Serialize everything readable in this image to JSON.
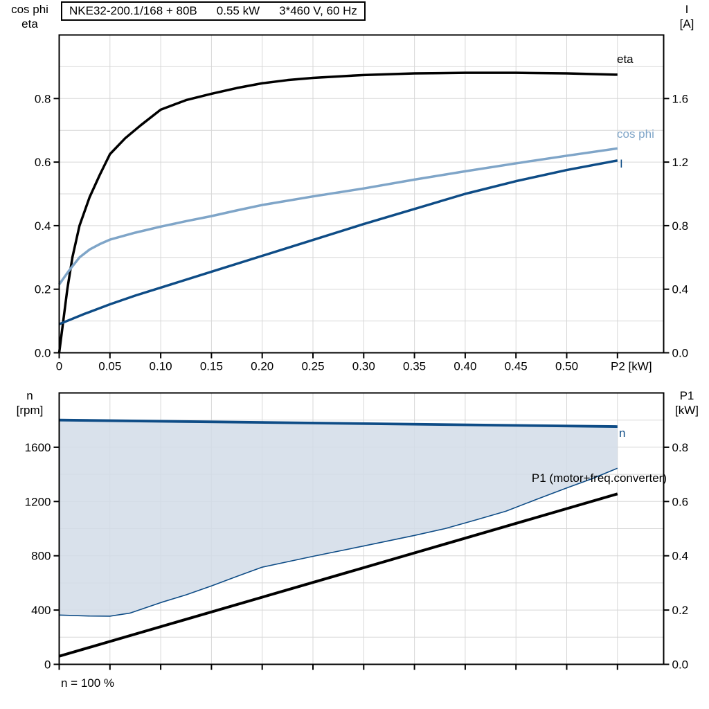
{
  "colors": {
    "black": "#000000",
    "light_blue": "#7FA5C8",
    "dark_blue": "#0E4C86",
    "fill": "#D2DCE8",
    "grid": "#D7D7D7"
  },
  "labels": {
    "title_model": "NKE32-200.1/168 + 80B",
    "title_power": "0.55 kW",
    "title_voltage": "3*460 V, 60 Hz",
    "axis_topleft_1": "cos phi",
    "axis_topleft_2": "eta",
    "axis_topright_1": "I",
    "axis_topright_2": "[A]",
    "axis_botleft_1": "n",
    "axis_botleft_2": "[rpm]",
    "axis_botright_1": "P1",
    "axis_botright_2": "[kW]",
    "curve_eta": "eta",
    "curve_cosphi": "cos phi",
    "curve_current": "I",
    "curve_n": "n",
    "curve_p1": "P1 (motor+freq.converter)",
    "footnote": "n = 100 %"
  },
  "chart_data": [
    {
      "type": "line",
      "title": "Motor curves: eta, cos phi, I vs shaft power P2",
      "x_axis": {
        "label": "P2 [kW]",
        "unit_label": "P2 [kW]",
        "unit_x": 0.55,
        "max": 0.5955,
        "grid_step": 0.05,
        "ticks": [
          0,
          0.05,
          0.1,
          0.15,
          0.2,
          0.25,
          0.3,
          0.35,
          0.4,
          0.45,
          0.5,
          0.55
        ],
        "tick_labels": [
          "0",
          "0.05",
          "0.10",
          "0.15",
          "0.20",
          "0.25",
          "0.30",
          "0.35",
          "0.40",
          "0.45",
          "0.50"
        ]
      },
      "y_left": {
        "label": "cos phi / eta",
        "range": [
          0,
          1.0
        ],
        "grid_step": 0.1,
        "ticks": [
          0,
          0.2,
          0.4,
          0.6,
          0.8
        ],
        "tick_labels": [
          "0.0",
          "0.2",
          "0.4",
          "0.6",
          "0.8"
        ]
      },
      "y_right": {
        "label": "I [A]",
        "range": [
          0,
          2.0
        ],
        "ticks": [
          0,
          0.4,
          0.8,
          1.2,
          1.6
        ],
        "tick_labels": [
          "0.0",
          "0.4",
          "0.8",
          "1.2",
          "1.6"
        ]
      },
      "series": [
        {
          "name": "eta",
          "axis": "left",
          "color": "black",
          "width": 3.5,
          "points": [
            [
              0,
              0
            ],
            [
              0.004,
              0.1
            ],
            [
              0.008,
              0.2
            ],
            [
              0.013,
              0.3
            ],
            [
              0.02,
              0.4
            ],
            [
              0.03,
              0.49
            ],
            [
              0.04,
              0.56
            ],
            [
              0.05,
              0.625
            ],
            [
              0.065,
              0.675
            ],
            [
              0.08,
              0.715
            ],
            [
              0.1,
              0.765
            ],
            [
              0.125,
              0.795
            ],
            [
              0.15,
              0.815
            ],
            [
              0.175,
              0.833
            ],
            [
              0.2,
              0.848
            ],
            [
              0.225,
              0.858
            ],
            [
              0.25,
              0.865
            ],
            [
              0.3,
              0.874
            ],
            [
              0.35,
              0.879
            ],
            [
              0.4,
              0.881
            ],
            [
              0.45,
              0.881
            ],
            [
              0.5,
              0.879
            ],
            [
              0.55,
              0.875
            ]
          ]
        },
        {
          "name": "cos_phi",
          "axis": "left",
          "color": "light_blue",
          "width": 3.5,
          "points": [
            [
              0,
              0.215
            ],
            [
              0.01,
              0.26
            ],
            [
              0.02,
              0.3
            ],
            [
              0.03,
              0.325
            ],
            [
              0.04,
              0.342
            ],
            [
              0.05,
              0.356
            ],
            [
              0.075,
              0.378
            ],
            [
              0.1,
              0.397
            ],
            [
              0.125,
              0.414
            ],
            [
              0.15,
              0.43
            ],
            [
              0.175,
              0.448
            ],
            [
              0.2,
              0.465
            ],
            [
              0.25,
              0.492
            ],
            [
              0.3,
              0.517
            ],
            [
              0.35,
              0.545
            ],
            [
              0.4,
              0.571
            ],
            [
              0.45,
              0.596
            ],
            [
              0.5,
              0.62
            ],
            [
              0.55,
              0.643
            ]
          ]
        },
        {
          "name": "I",
          "axis": "right",
          "color": "dark_blue",
          "width": 3.5,
          "points": [
            [
              0,
              0.18
            ],
            [
              0.025,
              0.245
            ],
            [
              0.05,
              0.305
            ],
            [
              0.075,
              0.36
            ],
            [
              0.1,
              0.41
            ],
            [
              0.15,
              0.51
            ],
            [
              0.2,
              0.61
            ],
            [
              0.25,
              0.71
            ],
            [
              0.3,
              0.81
            ],
            [
              0.35,
              0.905
            ],
            [
              0.4,
              1.0
            ],
            [
              0.45,
              1.08
            ],
            [
              0.5,
              1.15
            ],
            [
              0.55,
              1.21
            ]
          ]
        }
      ]
    },
    {
      "type": "line",
      "title": "Speed range n and input power P1 vs shaft power P2",
      "x_axis": {
        "label": "",
        "max": 0.5955,
        "grid_step": 0.05,
        "ticks": [
          0,
          0.05,
          0.1,
          0.15,
          0.2,
          0.25,
          0.3,
          0.35,
          0.4,
          0.45,
          0.5,
          0.55
        ],
        "tick_labels": null
      },
      "y_left": {
        "label": "n [rpm]",
        "range": [
          0,
          2000
        ],
        "grid_step": 200,
        "ticks": [
          0,
          400,
          800,
          1200,
          1600
        ],
        "tick_labels": [
          "0",
          "400",
          "800",
          "1200",
          "1600"
        ]
      },
      "y_right": {
        "label": "P1 [kW]",
        "range": [
          0,
          1.0
        ],
        "ticks": [
          0,
          0.2,
          0.4,
          0.6,
          0.8
        ],
        "tick_labels": [
          "0.0",
          "0.2",
          "0.4",
          "0.6",
          "0.8"
        ]
      },
      "fill_between": [
        "n_upper",
        "n_lower"
      ],
      "series": [
        {
          "name": "n_upper",
          "axis": "left",
          "color": "dark_blue",
          "width": 3.8,
          "points": [
            [
              0,
              1800
            ],
            [
              0.55,
              1752
            ]
          ]
        },
        {
          "name": "n_lower",
          "axis": "left",
          "color": "dark_blue",
          "width": 1.6,
          "points": [
            [
              0,
              363
            ],
            [
              0.03,
              356
            ],
            [
              0.05,
              355
            ],
            [
              0.07,
              378
            ],
            [
              0.1,
              455
            ],
            [
              0.125,
              512
            ],
            [
              0.15,
              578
            ],
            [
              0.175,
              648
            ],
            [
              0.2,
              716
            ],
            [
              0.25,
              796
            ],
            [
              0.3,
              872
            ],
            [
              0.35,
              950
            ],
            [
              0.38,
              1000
            ],
            [
              0.41,
              1063
            ],
            [
              0.44,
              1128
            ],
            [
              0.47,
              1215
            ],
            [
              0.5,
              1300
            ],
            [
              0.525,
              1368
            ],
            [
              0.55,
              1445
            ]
          ]
        },
        {
          "name": "P1",
          "axis": "right",
          "color": "black",
          "width": 4,
          "points": [
            [
              0,
              0.03
            ],
            [
              0.55,
              0.628
            ]
          ]
        }
      ]
    }
  ]
}
